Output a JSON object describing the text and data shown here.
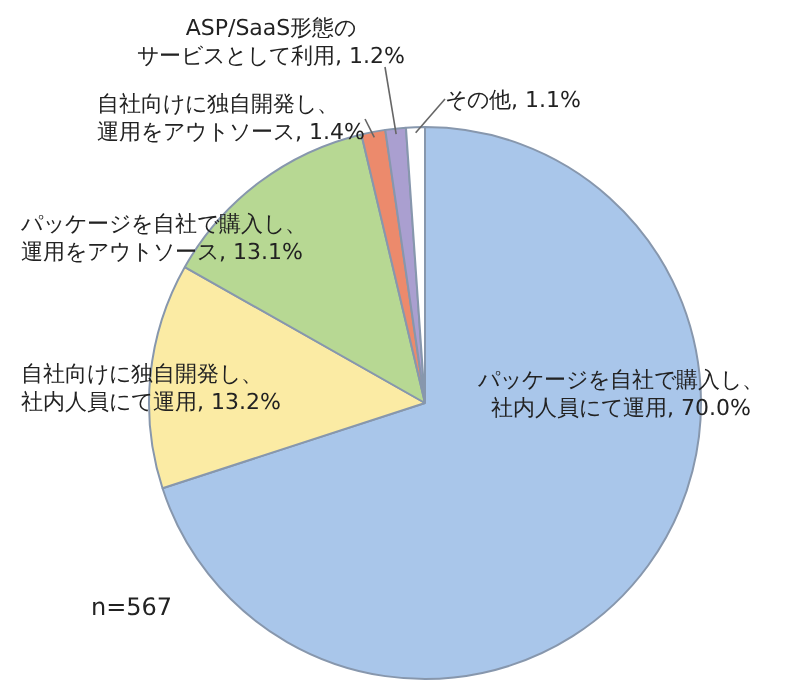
{
  "chart_data": {
    "type": "pie",
    "categories": [
      "パッケージを自社で購入し、社内人員にて運用",
      "自社向けに独自開発し、社内人員にて運用",
      "パッケージを自社で購入し、運用をアウトソース",
      "自社向けに独自開発し、運用をアウトソース",
      "ASP/SaaS形態のサービスとして利用",
      "その他"
    ],
    "values": [
      70.0,
      13.2,
      13.1,
      1.4,
      1.2,
      1.1
    ],
    "value_labels": [
      "70.0%",
      "13.2%",
      "13.1%",
      "1.4%",
      "1.2%",
      "1.1%"
    ],
    "colors": [
      "#a9c6ea",
      "#fbeba4",
      "#b7d893",
      "#ec8a6c",
      "#aa9fd0",
      "#ffffff"
    ],
    "annotations": [
      "n=567"
    ]
  }
}
